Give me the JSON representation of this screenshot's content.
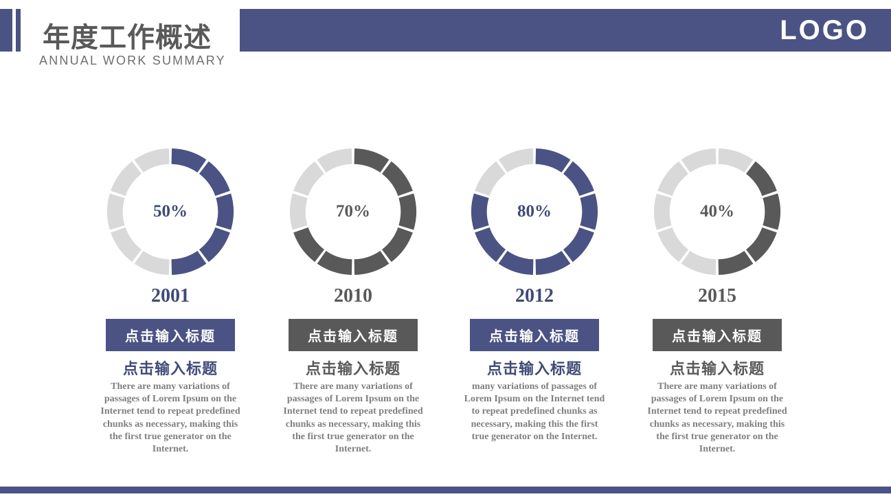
{
  "header": {
    "title_cn": "年度工作概述",
    "subtitle_en": "ANNUAL WORK SUMMARY",
    "logo_text": "LOGO"
  },
  "theme": {
    "accent_blue": "#4a5384",
    "accent_dark_gray": "#595959",
    "track_light_gray": "#d9d9d9",
    "body_text_gray": "#7f7f7f",
    "title_gray": "#595959"
  },
  "chart_data": {
    "type": "donut",
    "description": "Four segmented donut (ring) progress charts, 10 segments per ring, fill drawn clockwise from top",
    "segments_per_ring": 10,
    "items": [
      {
        "year": "2001",
        "value": 50,
        "label": "50%",
        "filled_color": "#4a5384",
        "track_color": "#d9d9d9",
        "start_angle_deg": 0
      },
      {
        "year": "2010",
        "value": 70,
        "label": "70%",
        "filled_color": "#595959",
        "track_color": "#d9d9d9",
        "start_angle_deg": 0
      },
      {
        "year": "2012",
        "value": 80,
        "label": "80%",
        "filled_color": "#4a5384",
        "track_color": "#d9d9d9",
        "start_angle_deg": 0
      },
      {
        "year": "2015",
        "value": 40,
        "label": "40%",
        "filled_color": "#595959",
        "track_color": "#d9d9d9",
        "start_angle_deg": 36
      }
    ]
  },
  "columns": [
    {
      "year": "2001",
      "percent": "50%",
      "accent": "#4a5384",
      "button_label": "点击输入标题",
      "heading": "点击输入标题",
      "body": "There are many variations of passages of Lorem Ipsum on the Internet tend to repeat predefined chunks as necessary, making this the first true generator on the Internet."
    },
    {
      "year": "2010",
      "percent": "70%",
      "accent": "#595959",
      "button_label": "点击输入标题",
      "heading": "点击输入标题",
      "body": "There are many variations of passages of Lorem Ipsum on the Internet tend to repeat predefined chunks as necessary, making this the first true generator on the Internet."
    },
    {
      "year": "2012",
      "percent": "80%",
      "accent": "#4a5384",
      "button_label": "点击输入标题",
      "heading": "点击输入标题",
      "body": "many variations of passages of Lorem Ipsum on the Internet tend to repeat predefined chunks as necessary, making this the first true generator on the Internet."
    },
    {
      "year": "2015",
      "percent": "40%",
      "accent": "#595959",
      "button_label": "点击输入标题",
      "heading": "点击输入标题",
      "body": "There are many variations of passages of Lorem Ipsum on the Internet tend to repeat predefined chunks as necessary, making this the first true generator on the Internet."
    }
  ]
}
